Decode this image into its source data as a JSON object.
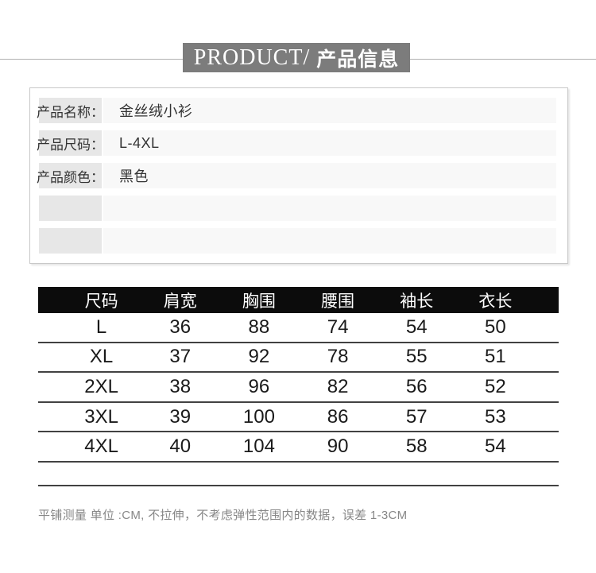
{
  "header": {
    "title_en": "PRODUCT/",
    "title_zh": "产品信息",
    "banner_color": "#7c7c7c",
    "line_color": "#b0b0b0"
  },
  "product_info": {
    "rows": [
      {
        "label": "产品名称：",
        "value": "金丝绒小衫"
      },
      {
        "label": "产品尺码：",
        "value": "L-4XL"
      },
      {
        "label": "产品颜色：",
        "value": "黑色"
      },
      {
        "label": "",
        "value": ""
      },
      {
        "label": "",
        "value": ""
      }
    ]
  },
  "size_table": {
    "header_bg": "#0c0c0c",
    "columns": [
      "尺码",
      "肩宽",
      "胸围",
      "腰围",
      "袖长",
      "衣长"
    ],
    "rows": [
      [
        "L",
        "36",
        "88",
        "74",
        "54",
        "50"
      ],
      [
        "XL",
        "37",
        "92",
        "78",
        "55",
        "51"
      ],
      [
        "2XL",
        "38",
        "96",
        "82",
        "56",
        "52"
      ],
      [
        "3XL",
        "39",
        "100",
        "86",
        "57",
        "53"
      ],
      [
        "4XL",
        "40",
        "104",
        "90",
        "58",
        "54"
      ]
    ]
  },
  "footer": {
    "note": "平铺测量 单位 :CM, 不拉伸，不考虑弹性范围内的数据，误差 1-3CM"
  }
}
